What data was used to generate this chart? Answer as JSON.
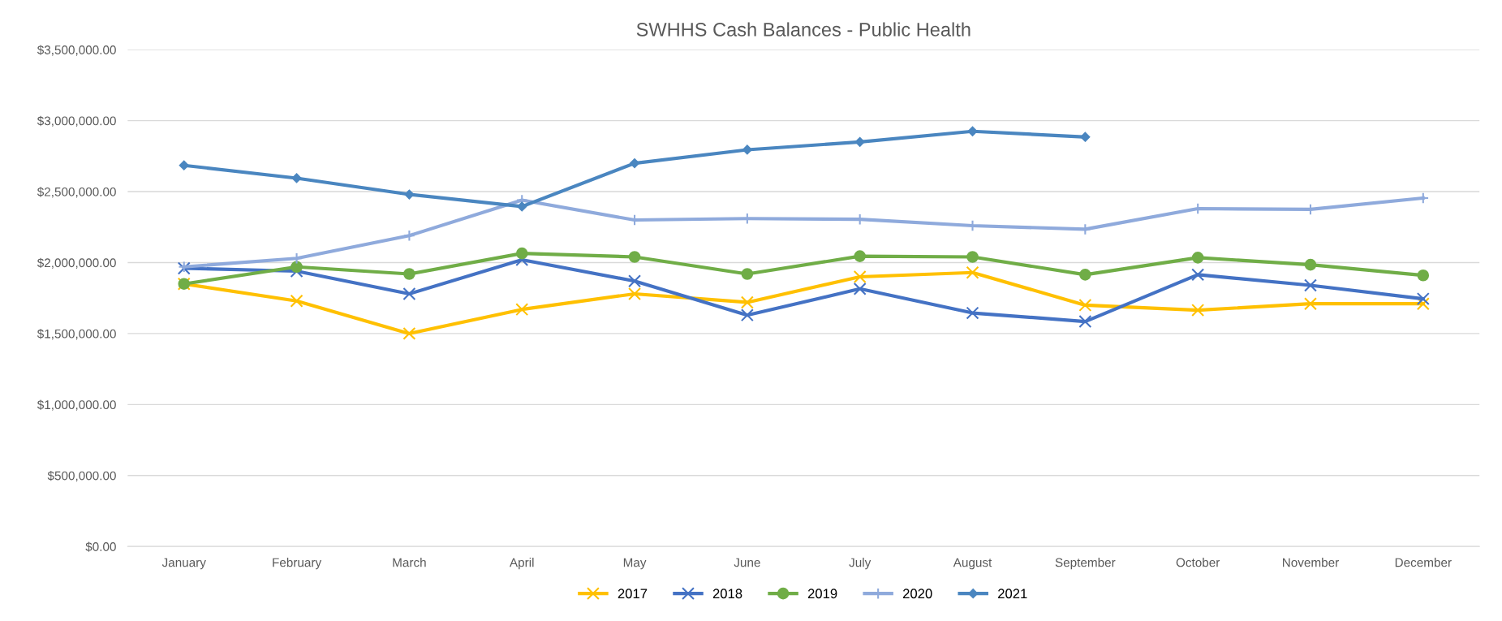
{
  "chart_data": {
    "type": "line",
    "title": "SWHHS Cash Balances - Public Health",
    "categories": [
      "January",
      "February",
      "March",
      "April",
      "May",
      "June",
      "July",
      "August",
      "September",
      "October",
      "November",
      "December"
    ],
    "series": [
      {
        "name": "2017",
        "color": "#ffc000",
        "marker": "cross",
        "values": [
          1850000,
          1730000,
          1500000,
          1670000,
          1780000,
          1720000,
          1900000,
          1930000,
          1700000,
          1665000,
          1710000,
          1710000
        ]
      },
      {
        "name": "2018",
        "color": "#4472c4",
        "marker": "cross",
        "values": [
          1960000,
          1940000,
          1780000,
          2020000,
          1870000,
          1630000,
          1815000,
          1645000,
          1585000,
          1915000,
          1840000,
          1745000
        ]
      },
      {
        "name": "2019",
        "color": "#70ad47",
        "marker": "circle",
        "values": [
          1850000,
          1970000,
          1920000,
          2065000,
          2040000,
          1920000,
          2045000,
          2040000,
          1915000,
          2035000,
          1985000,
          1910000
        ]
      },
      {
        "name": "2020",
        "color": "#8faadc",
        "marker": "plus",
        "values": [
          1970000,
          2030000,
          2190000,
          2440000,
          2300000,
          2310000,
          2305000,
          2260000,
          2235000,
          2380000,
          2375000,
          2455000
        ]
      },
      {
        "name": "2021",
        "color": "#4a86c0",
        "marker": "diamond",
        "values": [
          2685000,
          2595000,
          2480000,
          2395000,
          2700000,
          2795000,
          2850000,
          2925000,
          2885000,
          null,
          null,
          null
        ]
      }
    ],
    "ylim": [
      0,
      3500000
    ],
    "yticks": [
      {
        "value": 0,
        "label": "$0.00"
      },
      {
        "value": 500000,
        "label": "$500,000.00"
      },
      {
        "value": 1000000,
        "label": "$1,000,000.00"
      },
      {
        "value": 1500000,
        "label": "$1,500,000.00"
      },
      {
        "value": 2000000,
        "label": "$2,000,000.00"
      },
      {
        "value": 2500000,
        "label": "$2,500,000.00"
      },
      {
        "value": 3000000,
        "label": "$3,000,000.00"
      },
      {
        "value": 3500000,
        "label": "$3,500,000.00"
      }
    ],
    "grid": "y",
    "legend": "bottom",
    "line_style": "solid"
  }
}
